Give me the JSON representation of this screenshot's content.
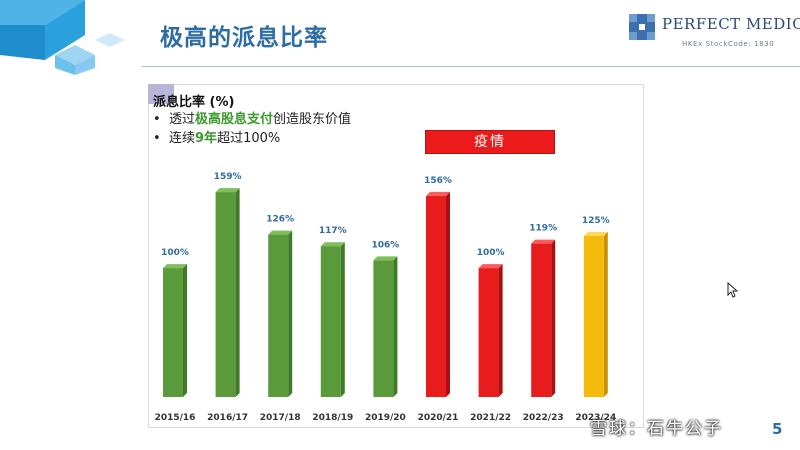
{
  "slide": {
    "title": "极高的派息比率",
    "page_number": "5"
  },
  "logo": {
    "name": "PERFECT MEDICAL",
    "sub": "HKEx StockCode: 1830"
  },
  "chart_heading": "派息比率 (%)",
  "bullets": [
    {
      "pre": "透过",
      "highlight": "极高股息支付",
      "post": "创造股东价值"
    },
    {
      "pre": "连续",
      "highlight": "9年",
      "post": "超过100%"
    }
  ],
  "annotation": "疫情",
  "watermark": "雪球：石牛公子",
  "colors": {
    "title": "#2e6da4",
    "green": "#5a9a3a",
    "red": "#e81c1c",
    "yellow": "#f5bb0c",
    "label": "#2e6da4",
    "highlight": "#3b9a2b"
  },
  "chart_data": {
    "type": "bar",
    "title": "派息比率 (%)",
    "categories": [
      "2015/16",
      "2016/17",
      "2017/18",
      "2018/19",
      "2019/20",
      "2020/21",
      "2021/22",
      "2022/23",
      "2023/24"
    ],
    "values": [
      100,
      159,
      126,
      117,
      106,
      156,
      100,
      119,
      125
    ],
    "data_labels": [
      "100%",
      "159%",
      "126%",
      "117%",
      "106%",
      "156%",
      "100%",
      "119%",
      "125%"
    ],
    "bar_colors": [
      "green",
      "green",
      "green",
      "green",
      "green",
      "red",
      "red",
      "red",
      "yellow"
    ],
    "annotation": {
      "text": "疫情",
      "spans": [
        "2020/21",
        "2021/22",
        "2022/23"
      ]
    },
    "ylim": [
      0,
      180
    ],
    "grid": false,
    "legend": "none",
    "xlabel": "",
    "ylabel": ""
  }
}
